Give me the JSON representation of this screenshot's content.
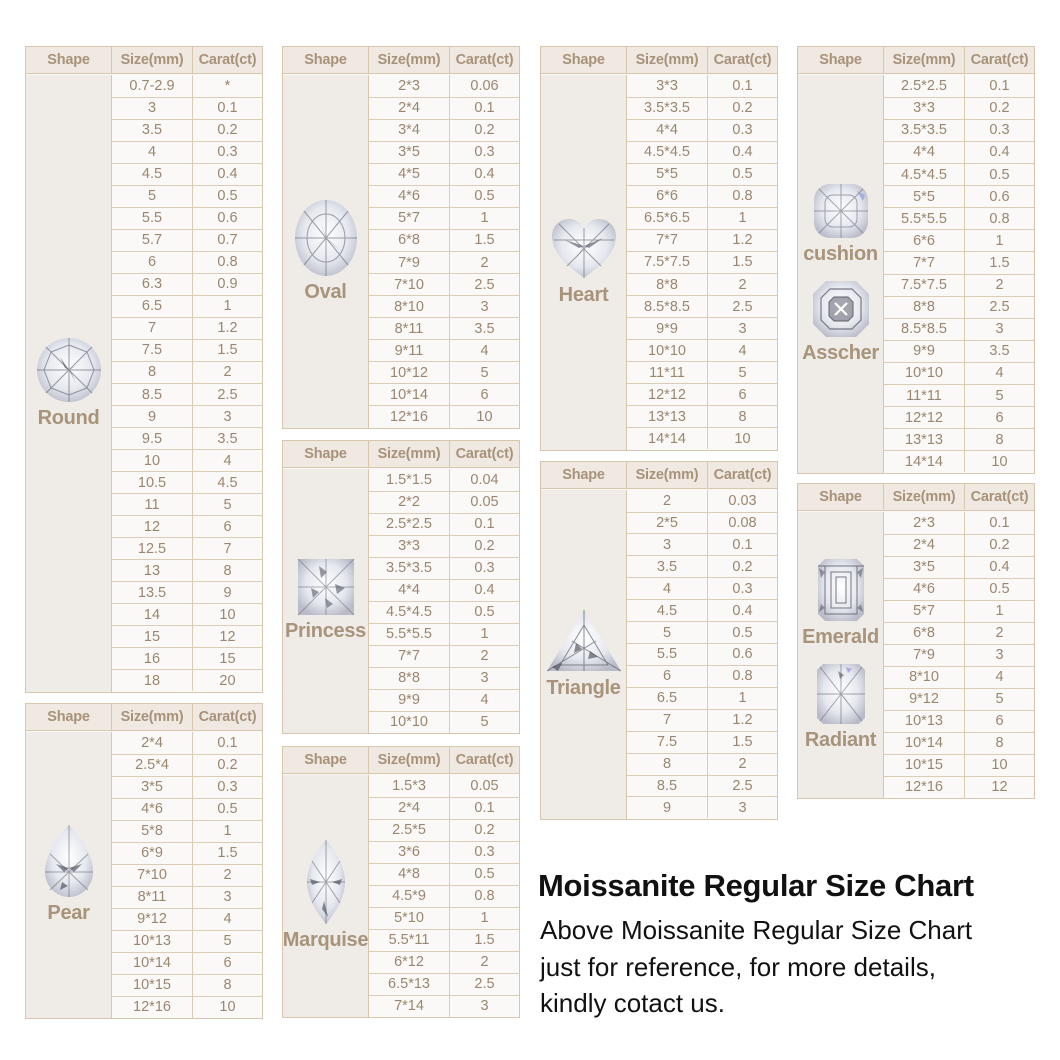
{
  "headers": {
    "shape": "Shape",
    "size": "Size(mm)",
    "carat": "Carat(ct)"
  },
  "colors": {
    "border": "#d8c6ad",
    "header_bg": "#efe9e2",
    "shape_bg": "#efebe6",
    "cell_bg": "#faf9f7",
    "text": "#9b8670",
    "title_text": "#111111"
  },
  "title": "Moissanite Regular Size Chart",
  "note": {
    "line1": "Above Moissanite Regular Size Chart",
    "line2": "just for reference, for more details,",
    "line3": "kindly cotact us."
  },
  "tables": {
    "round": {
      "labels": [
        "Round"
      ],
      "rows": [
        [
          "0.7-2.9",
          "*"
        ],
        [
          "3",
          "0.1"
        ],
        [
          "3.5",
          "0.2"
        ],
        [
          "4",
          "0.3"
        ],
        [
          "4.5",
          "0.4"
        ],
        [
          "5",
          "0.5"
        ],
        [
          "5.5",
          "0.6"
        ],
        [
          "5.7",
          "0.7"
        ],
        [
          "6",
          "0.8"
        ],
        [
          "6.3",
          "0.9"
        ],
        [
          "6.5",
          "1"
        ],
        [
          "7",
          "1.2"
        ],
        [
          "7.5",
          "1.5"
        ],
        [
          "8",
          "2"
        ],
        [
          "8.5",
          "2.5"
        ],
        [
          "9",
          "3"
        ],
        [
          "9.5",
          "3.5"
        ],
        [
          "10",
          "4"
        ],
        [
          "10.5",
          "4.5"
        ],
        [
          "11",
          "5"
        ],
        [
          "12",
          "6"
        ],
        [
          "12.5",
          "7"
        ],
        [
          "13",
          "8"
        ],
        [
          "13.5",
          "9"
        ],
        [
          "14",
          "10"
        ],
        [
          "15",
          "12"
        ],
        [
          "16",
          "15"
        ],
        [
          "18",
          "20"
        ]
      ]
    },
    "pear": {
      "labels": [
        "Pear"
      ],
      "rows": [
        [
          "2*4",
          "0.1"
        ],
        [
          "2.5*4",
          "0.2"
        ],
        [
          "3*5",
          "0.3"
        ],
        [
          "4*6",
          "0.5"
        ],
        [
          "5*8",
          "1"
        ],
        [
          "6*9",
          "1.5"
        ],
        [
          "7*10",
          "2"
        ],
        [
          "8*11",
          "3"
        ],
        [
          "9*12",
          "4"
        ],
        [
          "10*13",
          "5"
        ],
        [
          "10*14",
          "6"
        ],
        [
          "10*15",
          "8"
        ],
        [
          "12*16",
          "10"
        ]
      ]
    },
    "oval": {
      "labels": [
        "Oval"
      ],
      "rows": [
        [
          "2*3",
          "0.06"
        ],
        [
          "2*4",
          "0.1"
        ],
        [
          "3*4",
          "0.2"
        ],
        [
          "3*5",
          "0.3"
        ],
        [
          "4*5",
          "0.4"
        ],
        [
          "4*6",
          "0.5"
        ],
        [
          "5*7",
          "1"
        ],
        [
          "6*8",
          "1.5"
        ],
        [
          "7*9",
          "2"
        ],
        [
          "7*10",
          "2.5"
        ],
        [
          "8*10",
          "3"
        ],
        [
          "8*11",
          "3.5"
        ],
        [
          "9*11",
          "4"
        ],
        [
          "10*12",
          "5"
        ],
        [
          "10*14",
          "6"
        ],
        [
          "12*16",
          "10"
        ]
      ]
    },
    "princess": {
      "labels": [
        "Princess"
      ],
      "rows": [
        [
          "1.5*1.5",
          "0.04"
        ],
        [
          "2*2",
          "0.05"
        ],
        [
          "2.5*2.5",
          "0.1"
        ],
        [
          "3*3",
          "0.2"
        ],
        [
          "3.5*3.5",
          "0.3"
        ],
        [
          "4*4",
          "0.4"
        ],
        [
          "4.5*4.5",
          "0.5"
        ],
        [
          "5.5*5.5",
          "1"
        ],
        [
          "7*7",
          "2"
        ],
        [
          "8*8",
          "3"
        ],
        [
          "9*9",
          "4"
        ],
        [
          "10*10",
          "5"
        ]
      ]
    },
    "marquise": {
      "labels": [
        "Marquise"
      ],
      "rows": [
        [
          "1.5*3",
          "0.05"
        ],
        [
          "2*4",
          "0.1"
        ],
        [
          "2.5*5",
          "0.2"
        ],
        [
          "3*6",
          "0.3"
        ],
        [
          "4*8",
          "0.5"
        ],
        [
          "4.5*9",
          "0.8"
        ],
        [
          "5*10",
          "1"
        ],
        [
          "5.5*11",
          "1.5"
        ],
        [
          "6*12",
          "2"
        ],
        [
          "6.5*13",
          "2.5"
        ],
        [
          "7*14",
          "3"
        ]
      ]
    },
    "heart": {
      "labels": [
        "Heart"
      ],
      "rows": [
        [
          "3*3",
          "0.1"
        ],
        [
          "3.5*3.5",
          "0.2"
        ],
        [
          "4*4",
          "0.3"
        ],
        [
          "4.5*4.5",
          "0.4"
        ],
        [
          "5*5",
          "0.5"
        ],
        [
          "6*6",
          "0.8"
        ],
        [
          "6.5*6.5",
          "1"
        ],
        [
          "7*7",
          "1.2"
        ],
        [
          "7.5*7.5",
          "1.5"
        ],
        [
          "8*8",
          "2"
        ],
        [
          "8.5*8.5",
          "2.5"
        ],
        [
          "9*9",
          "3"
        ],
        [
          "10*10",
          "4"
        ],
        [
          "11*11",
          "5"
        ],
        [
          "12*12",
          "6"
        ],
        [
          "13*13",
          "8"
        ],
        [
          "14*14",
          "10"
        ]
      ]
    },
    "triangle": {
      "labels": [
        "Triangle"
      ],
      "rows": [
        [
          "2",
          "0.03"
        ],
        [
          "2*5",
          "0.08"
        ],
        [
          "3",
          "0.1"
        ],
        [
          "3.5",
          "0.2"
        ],
        [
          "4",
          "0.3"
        ],
        [
          "4.5",
          "0.4"
        ],
        [
          "5",
          "0.5"
        ],
        [
          "5.5",
          "0.6"
        ],
        [
          "6",
          "0.8"
        ],
        [
          "6.5",
          "1"
        ],
        [
          "7",
          "1.2"
        ],
        [
          "7.5",
          "1.5"
        ],
        [
          "8",
          "2"
        ],
        [
          "8.5",
          "2.5"
        ],
        [
          "9",
          "3"
        ]
      ]
    },
    "cushion_asscher": {
      "labels": [
        "cushion",
        "Asscher"
      ],
      "rows": [
        [
          "2.5*2.5",
          "0.1"
        ],
        [
          "3*3",
          "0.2"
        ],
        [
          "3.5*3.5",
          "0.3"
        ],
        [
          "4*4",
          "0.4"
        ],
        [
          "4.5*4.5",
          "0.5"
        ],
        [
          "5*5",
          "0.6"
        ],
        [
          "5.5*5.5",
          "0.8"
        ],
        [
          "6*6",
          "1"
        ],
        [
          "7*7",
          "1.5"
        ],
        [
          "7.5*7.5",
          "2"
        ],
        [
          "8*8",
          "2.5"
        ],
        [
          "8.5*8.5",
          "3"
        ],
        [
          "9*9",
          "3.5"
        ],
        [
          "10*10",
          "4"
        ],
        [
          "11*11",
          "5"
        ],
        [
          "12*12",
          "6"
        ],
        [
          "13*13",
          "8"
        ],
        [
          "14*14",
          "10"
        ]
      ]
    },
    "emerald_radiant": {
      "labels": [
        "Emerald",
        "Radiant"
      ],
      "rows": [
        [
          "2*3",
          "0.1"
        ],
        [
          "2*4",
          "0.2"
        ],
        [
          "3*5",
          "0.4"
        ],
        [
          "4*6",
          "0.5"
        ],
        [
          "5*7",
          "1"
        ],
        [
          "6*8",
          "2"
        ],
        [
          "7*9",
          "3"
        ],
        [
          "8*10",
          "4"
        ],
        [
          "9*12",
          "5"
        ],
        [
          "10*13",
          "6"
        ],
        [
          "10*14",
          "8"
        ],
        [
          "10*15",
          "10"
        ],
        [
          "12*16",
          "12"
        ]
      ]
    }
  },
  "chart_data": {
    "type": "table",
    "title": "Moissanite Regular Size Chart",
    "subtitle": "Above Moissanite Regular Size Chart just for reference, for more details, kindly cotact us.",
    "columns": [
      "Shape",
      "Size(mm)",
      "Carat(ct)"
    ],
    "series": [
      {
        "name": "Round",
        "sizes": [
          "0.7-2.9",
          "3",
          "3.5",
          "4",
          "4.5",
          "5",
          "5.5",
          "5.7",
          "6",
          "6.3",
          "6.5",
          "7",
          "7.5",
          "8",
          "8.5",
          "9",
          "9.5",
          "10",
          "10.5",
          "11",
          "12",
          "12.5",
          "13",
          "13.5",
          "14",
          "15",
          "16",
          "18"
        ],
        "carats": [
          "*",
          "0.1",
          "0.2",
          "0.3",
          "0.4",
          "0.5",
          "0.6",
          "0.7",
          "0.8",
          "0.9",
          "1",
          "1.2",
          "1.5",
          "2",
          "2.5",
          "3",
          "3.5",
          "4",
          "4.5",
          "5",
          "6",
          "7",
          "8",
          "9",
          "10",
          "12",
          "15",
          "20"
        ]
      },
      {
        "name": "Oval",
        "sizes": [
          "2*3",
          "2*4",
          "3*4",
          "3*5",
          "4*5",
          "4*6",
          "5*7",
          "6*8",
          "7*9",
          "7*10",
          "8*10",
          "8*11",
          "9*11",
          "10*12",
          "10*14",
          "12*16"
        ],
        "carats": [
          "0.06",
          "0.1",
          "0.2",
          "0.3",
          "0.4",
          "0.5",
          "1",
          "1.5",
          "2",
          "2.5",
          "3",
          "3.5",
          "4",
          "5",
          "6",
          "10"
        ]
      },
      {
        "name": "Heart",
        "sizes": [
          "3*3",
          "3.5*3.5",
          "4*4",
          "4.5*4.5",
          "5*5",
          "6*6",
          "6.5*6.5",
          "7*7",
          "7.5*7.5",
          "8*8",
          "8.5*8.5",
          "9*9",
          "10*10",
          "11*11",
          "12*12",
          "13*13",
          "14*14"
        ],
        "carats": [
          "0.1",
          "0.2",
          "0.3",
          "0.4",
          "0.5",
          "0.8",
          "1",
          "1.2",
          "1.5",
          "2",
          "2.5",
          "3",
          "4",
          "5",
          "6",
          "8",
          "10"
        ]
      },
      {
        "name": "Cushion / Asscher",
        "sizes": [
          "2.5*2.5",
          "3*3",
          "3.5*3.5",
          "4*4",
          "4.5*4.5",
          "5*5",
          "5.5*5.5",
          "6*6",
          "7*7",
          "7.5*7.5",
          "8*8",
          "8.5*8.5",
          "9*9",
          "10*10",
          "11*11",
          "12*12",
          "13*13",
          "14*14"
        ],
        "carats": [
          "0.1",
          "0.2",
          "0.3",
          "0.4",
          "0.5",
          "0.6",
          "0.8",
          "1",
          "1.5",
          "2",
          "2.5",
          "3",
          "3.5",
          "4",
          "5",
          "6",
          "8",
          "10"
        ]
      },
      {
        "name": "Princess",
        "sizes": [
          "1.5*1.5",
          "2*2",
          "2.5*2.5",
          "3*3",
          "3.5*3.5",
          "4*4",
          "4.5*4.5",
          "5.5*5.5",
          "7*7",
          "8*8",
          "9*9",
          "10*10"
        ],
        "carats": [
          "0.04",
          "0.05",
          "0.1",
          "0.2",
          "0.3",
          "0.4",
          "0.5",
          "1",
          "2",
          "3",
          "4",
          "5"
        ]
      },
      {
        "name": "Triangle",
        "sizes": [
          "2",
          "2*5",
          "3",
          "3.5",
          "4",
          "4.5",
          "5",
          "5.5",
          "6",
          "6.5",
          "7",
          "7.5",
          "8",
          "8.5",
          "9"
        ],
        "carats": [
          "0.03",
          "0.08",
          "0.1",
          "0.2",
          "0.3",
          "0.4",
          "0.5",
          "0.6",
          "0.8",
          "1",
          "1.2",
          "1.5",
          "2",
          "2.5",
          "3"
        ]
      },
      {
        "name": "Emerald / Radiant",
        "sizes": [
          "2*3",
          "2*4",
          "3*5",
          "4*6",
          "5*7",
          "6*8",
          "7*9",
          "8*10",
          "9*12",
          "10*13",
          "10*14",
          "10*15",
          "12*16"
        ],
        "carats": [
          "0.1",
          "0.2",
          "0.4",
          "0.5",
          "1",
          "2",
          "3",
          "4",
          "5",
          "6",
          "8",
          "10",
          "12"
        ]
      },
      {
        "name": "Pear",
        "sizes": [
          "2*4",
          "2.5*4",
          "3*5",
          "4*6",
          "5*8",
          "6*9",
          "7*10",
          "8*11",
          "9*12",
          "10*13",
          "10*14",
          "10*15",
          "12*16"
        ],
        "carats": [
          "0.1",
          "0.2",
          "0.3",
          "0.5",
          "1",
          "1.5",
          "2",
          "3",
          "4",
          "5",
          "6",
          "8",
          "10"
        ]
      },
      {
        "name": "Marquise",
        "sizes": [
          "1.5*3",
          "2*4",
          "2.5*5",
          "3*6",
          "4*8",
          "4.5*9",
          "5*10",
          "5.5*11",
          "6*12",
          "6.5*13",
          "7*14"
        ],
        "carats": [
          "0.05",
          "0.1",
          "0.2",
          "0.3",
          "0.5",
          "0.8",
          "1",
          "1.5",
          "2",
          "2.5",
          "3"
        ]
      }
    ]
  }
}
